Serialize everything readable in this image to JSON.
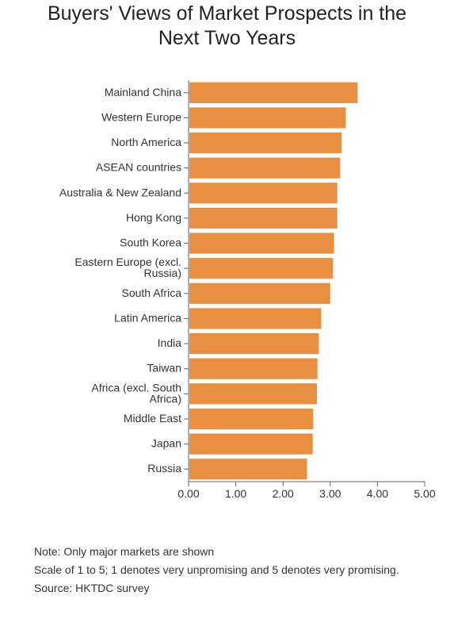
{
  "chart_data": {
    "type": "bar",
    "orientation": "horizontal",
    "title_lines": [
      "Buyers' Views of Market Prospects in the",
      "Next Two Years"
    ],
    "categories": [
      "Mainland China",
      "Western Europe",
      "North America",
      "ASEAN countries",
      "Australia & New Zealand",
      "Hong Kong",
      "South Korea",
      "Eastern Europe (excl. Russia)",
      "South Africa",
      "Latin America",
      "India",
      "Taiwan",
      "Africa (excl. South Africa)",
      "Middle East",
      "Japan",
      "Russia"
    ],
    "category_label_lines": [
      [
        "Mainland China"
      ],
      [
        "Western Europe"
      ],
      [
        "North America"
      ],
      [
        "ASEAN countries"
      ],
      [
        "Australia & New Zealand"
      ],
      [
        "Hong Kong"
      ],
      [
        "South Korea"
      ],
      [
        "Eastern Europe (excl.",
        "Russia)"
      ],
      [
        "South Africa"
      ],
      [
        "Latin America"
      ],
      [
        "India"
      ],
      [
        "Taiwan"
      ],
      [
        "Africa (excl. South",
        "Africa)"
      ],
      [
        "Middle East"
      ],
      [
        "Japan"
      ],
      [
        "Russia"
      ]
    ],
    "values": [
      3.58,
      3.33,
      3.24,
      3.21,
      3.15,
      3.15,
      3.08,
      3.06,
      3.0,
      2.81,
      2.76,
      2.73,
      2.72,
      2.64,
      2.63,
      2.51
    ],
    "xlim": [
      0,
      5
    ],
    "xticks": [
      0,
      1,
      2,
      3,
      4,
      5
    ],
    "xtick_labels": [
      "0.00",
      "1.00",
      "2.00",
      "3.00",
      "4.00",
      "5.00"
    ],
    "bar_color": "#e98f42",
    "grid": false,
    "legend": "none"
  },
  "notes": [
    "Note: Only major markets are shown",
    "Scale of 1 to 5; 1 denotes very unpromising and 5 denotes very promising.",
    "Source: HKTDC survey"
  ]
}
